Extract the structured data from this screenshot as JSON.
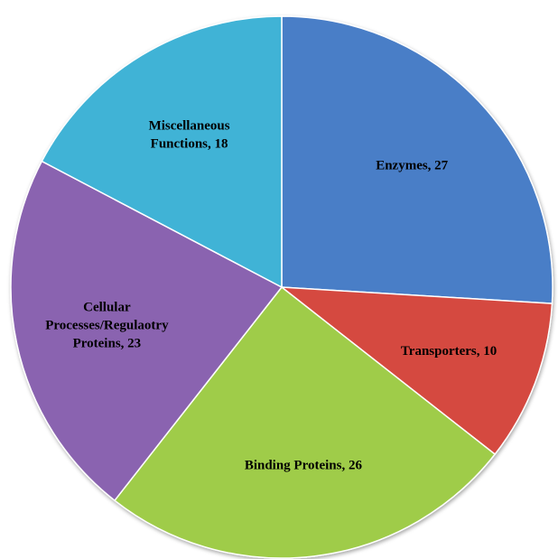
{
  "chart_data": {
    "type": "pie",
    "title": "",
    "slices": [
      {
        "label_lines": [
          "Enzymes, 27"
        ],
        "value": 27,
        "color": "#4a7ec7"
      },
      {
        "label_lines": [
          "Transporters, 10"
        ],
        "value": 10,
        "color": "#d5483f"
      },
      {
        "label_lines": [
          "Binding Proteins, 26"
        ],
        "value": 26,
        "color": "#9fcc4a"
      },
      {
        "label_lines": [
          "Cellular",
          "Processes/Regulaotry",
          "Proteins, 23"
        ],
        "value": 23,
        "color": "#8a63b0"
      },
      {
        "label_lines": [
          "Miscellaneous",
          "Functions, 18"
        ],
        "value": 18,
        "color": "#3fb3d6"
      }
    ],
    "start_angle": "12 o'clock",
    "direction": "clockwise",
    "legend": "none"
  }
}
